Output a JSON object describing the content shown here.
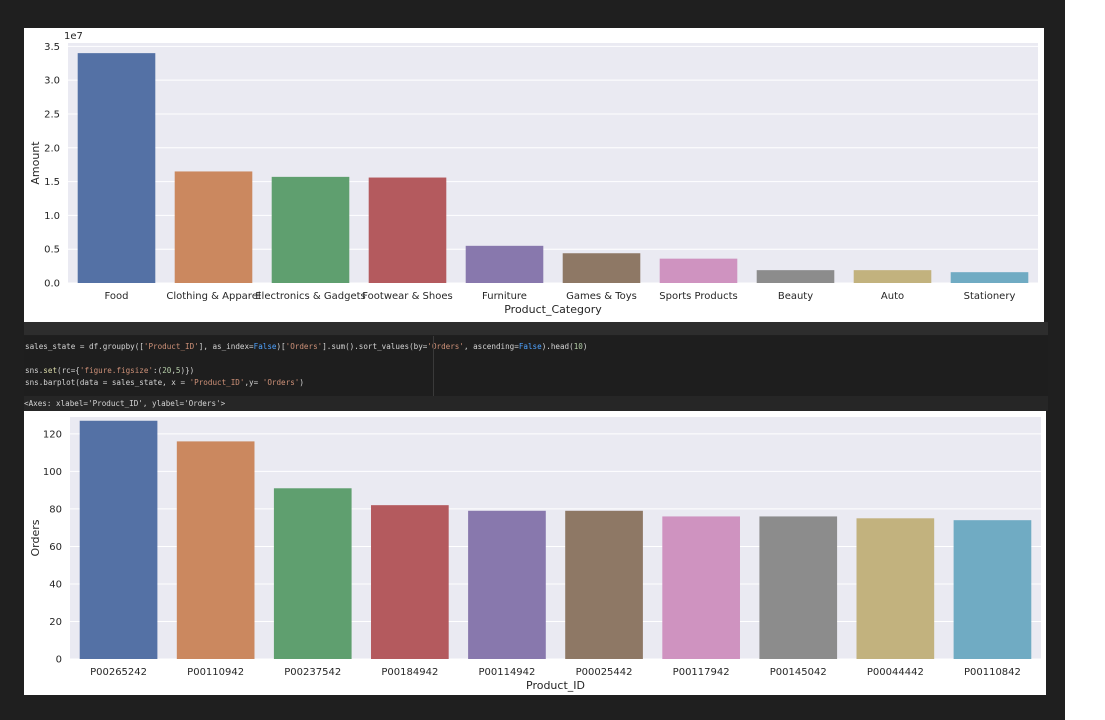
{
  "chart_data": [
    {
      "type": "bar",
      "categories": [
        "Food",
        "Clothing & Apparel",
        "Electronics & Gadgets",
        "Footwear & Shoes",
        "Furniture",
        "Games & Toys",
        "Sports Products",
        "Beauty",
        "Auto",
        "Stationery"
      ],
      "values": [
        34000000,
        16500000,
        15700000,
        15600000,
        5500000,
        4400000,
        3600000,
        1900000,
        1900000,
        1600000
      ],
      "xlabel": "Product_Category",
      "ylabel": "Amount",
      "ylim": [
        0,
        35500000
      ],
      "yticks": [
        0,
        5000000,
        10000000,
        15000000,
        20000000,
        25000000,
        30000000,
        35000000
      ],
      "ytick_labels": [
        "0.0",
        "0.5",
        "1.0",
        "1.5",
        "2.0",
        "2.5",
        "3.0",
        "3.5"
      ],
      "offset_label": "1e7",
      "grid": true,
      "colors": [
        "#5471a5",
        "#cb885f",
        "#5f9f6f",
        "#b45a5e",
        "#8878ad",
        "#8e7865",
        "#cf93c0",
        "#8c8c8c",
        "#c2b27e",
        "#70abc3"
      ]
    },
    {
      "type": "bar",
      "categories": [
        "P00265242",
        "P00110942",
        "P00237542",
        "P00184942",
        "P00114942",
        "P00025442",
        "P00117942",
        "P00145042",
        "P00044442",
        "P00110842"
      ],
      "values": [
        127,
        116,
        91,
        82,
        79,
        79,
        76,
        76,
        75,
        74
      ],
      "xlabel": "Product_ID",
      "ylabel": "Orders",
      "ylim": [
        0,
        129
      ],
      "yticks": [
        0,
        20,
        40,
        60,
        80,
        100,
        120
      ],
      "ytick_labels": [
        "0",
        "20",
        "40",
        "60",
        "80",
        "100",
        "120"
      ],
      "grid": true,
      "colors": [
        "#5471a5",
        "#cb885f",
        "#5f9f6f",
        "#b45a5e",
        "#8878ad",
        "#8e7865",
        "#cf93c0",
        "#8c8c8c",
        "#c2b27e",
        "#70abc3"
      ]
    }
  ],
  "code_cell": {
    "line1": {
      "a": "sales_state = df.groupby([",
      "b": "'Product_ID'",
      "c": "], as_index=",
      "d": "False",
      "e": ")[",
      "f": "'Orders'",
      "g": "].sum().sort_values(by=",
      "h": "'Orders'",
      "i": ", ascending=",
      "j": "False",
      "k": ").head(",
      "l": "10",
      "m": ")"
    },
    "line3": {
      "a": "sns.",
      "b": "set",
      "c": "(rc={",
      "d": "'figure.figsize'",
      "e": ":(",
      "f": "20",
      "g": ",",
      "h": "5",
      "i": ")})"
    },
    "line4": {
      "a": "sns.barplot(data = sales_state, x = ",
      "b": "'Product_ID'",
      "c": ",y= ",
      "d": "'Orders'",
      "e": ")"
    }
  },
  "output_text": "<Axes: xlabel='Product_ID', ylabel='Orders'>",
  "theme": {
    "background": "#eaeaf2",
    "grid": "#ffffff",
    "cell_bg": "#1e1e1e",
    "frame_bg": "#1f1f1f"
  }
}
